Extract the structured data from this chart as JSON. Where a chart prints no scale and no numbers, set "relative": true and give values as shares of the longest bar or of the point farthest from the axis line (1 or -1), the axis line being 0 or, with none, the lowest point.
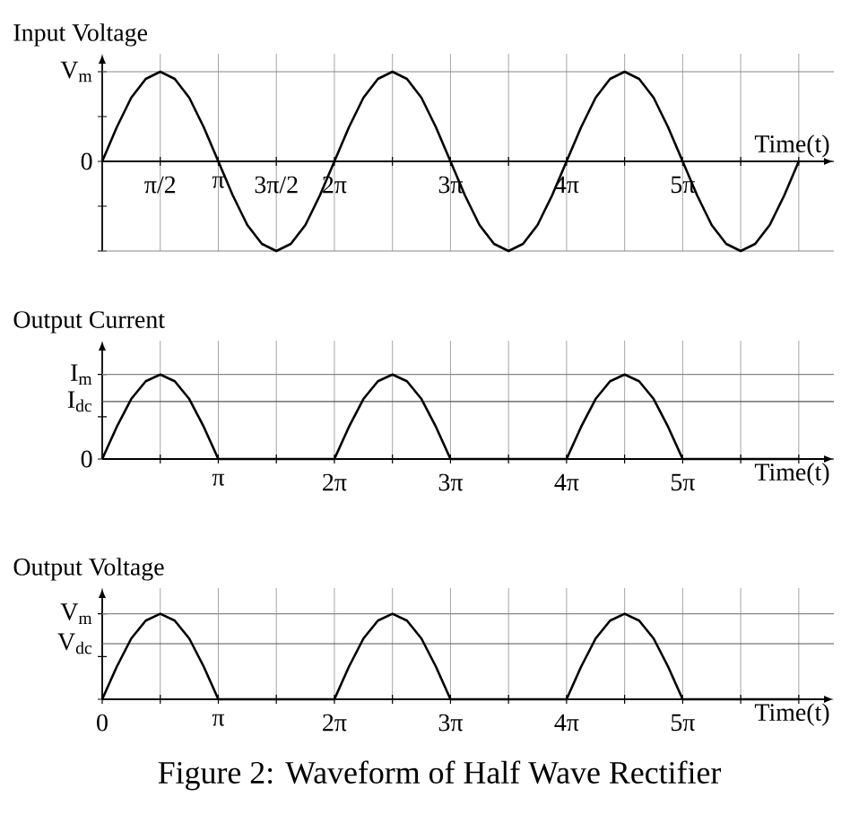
{
  "chart_data": [
    {
      "type": "line",
      "title": "Input Voltage",
      "xlabel": "Time(t)",
      "relative": true,
      "x": [
        0,
        0.393,
        0.785,
        1.178,
        1.571,
        1.963,
        2.356,
        2.749,
        3.142,
        3.534,
        3.927,
        4.32,
        4.712,
        5.105,
        5.498,
        5.89,
        6.283,
        6.676,
        7.069,
        7.461,
        7.854,
        8.247,
        8.639,
        9.032,
        9.425,
        9.817,
        10.21,
        10.603,
        10.996,
        11.388,
        11.781,
        12.174,
        12.566,
        12.959,
        13.352,
        13.744,
        14.137,
        14.53,
        14.923,
        15.315,
        15.708,
        16.101,
        16.493,
        16.886,
        17.279,
        17.671,
        18.064,
        18.457,
        18.85
      ],
      "series": [
        {
          "color": "#000000",
          "values": [
            0,
            0.38,
            0.71,
            0.92,
            1,
            0.92,
            0.71,
            0.38,
            0,
            -0.38,
            -0.71,
            -0.92,
            -1,
            -0.92,
            -0.71,
            -0.38,
            0,
            0.38,
            0.71,
            0.92,
            1,
            0.92,
            0.71,
            0.38,
            0,
            -0.38,
            -0.71,
            -0.92,
            -1,
            -0.92,
            -0.71,
            -0.38,
            0,
            0.38,
            0.71,
            0.92,
            1,
            0.92,
            0.71,
            0.38,
            0,
            -0.38,
            -0.71,
            -0.92,
            -1,
            -0.92,
            -0.71,
            -0.38,
            0
          ]
        }
      ],
      "xlim": [
        0,
        19.8
      ],
      "xticks": [
        {
          "value": 1.571,
          "label": "π/2"
        },
        {
          "value": 3.142,
          "label": "π"
        },
        {
          "value": 4.712,
          "label": "3π/2"
        },
        {
          "value": 6.283,
          "label": "2π"
        },
        {
          "value": 7.854,
          "label": null
        },
        {
          "value": 9.425,
          "label": "3π"
        },
        {
          "value": 10.996,
          "label": null
        },
        {
          "value": 12.566,
          "label": "4π"
        },
        {
          "value": 14.137,
          "label": null
        },
        {
          "value": 15.708,
          "label": "5π"
        },
        {
          "value": 17.279,
          "label": null
        },
        {
          "value": 18.85,
          "label": null
        }
      ],
      "ref_lines": [
        {
          "axis": "y",
          "value": 1,
          "label": "V$_{m}$",
          "color": "#888888"
        },
        {
          "axis": "y",
          "value": 0,
          "label": "0",
          "color": "#000000"
        },
        {
          "axis": "y",
          "value": -1,
          "color": "#888888"
        }
      ],
      "grid": "x",
      "line_style": "solid"
    },
    {
      "type": "line",
      "title": "Output Current",
      "xlabel": "Time(t)",
      "relative": true,
      "x": [
        0,
        0.393,
        0.785,
        1.178,
        1.571,
        1.963,
        2.356,
        2.749,
        3.142,
        3.534,
        3.927,
        4.32,
        4.712,
        5.105,
        5.498,
        5.89,
        6.283,
        6.676,
        7.069,
        7.461,
        7.854,
        8.247,
        8.639,
        9.032,
        9.425,
        9.817,
        10.21,
        10.603,
        10.996,
        11.388,
        11.781,
        12.174,
        12.566,
        12.959,
        13.352,
        13.744,
        14.137,
        14.53,
        14.923,
        15.315,
        15.708,
        16.101,
        16.493,
        16.886,
        17.279,
        17.671,
        18.064,
        18.457,
        18.85
      ],
      "series": [
        {
          "color": "#000000",
          "values": [
            0,
            0.38,
            0.71,
            0.92,
            1,
            0.92,
            0.71,
            0.38,
            0,
            0,
            0,
            0,
            0,
            0,
            0,
            0,
            0,
            0.38,
            0.71,
            0.92,
            1,
            0.92,
            0.71,
            0.38,
            0,
            0,
            0,
            0,
            0,
            0,
            0,
            0,
            0,
            0.38,
            0.71,
            0.92,
            1,
            0.92,
            0.71,
            0.38,
            0,
            0,
            0,
            0,
            0,
            0,
            0,
            0,
            0
          ]
        }
      ],
      "xlim": [
        0,
        19.8
      ],
      "xticks": [
        {
          "value": 1.571,
          "label": null
        },
        {
          "value": 3.142,
          "label": "π"
        },
        {
          "value": 4.712,
          "label": null
        },
        {
          "value": 6.283,
          "label": "2π"
        },
        {
          "value": 7.854,
          "label": null
        },
        {
          "value": 9.425,
          "label": "3π"
        },
        {
          "value": 10.996,
          "label": null
        },
        {
          "value": 12.566,
          "label": "4π"
        },
        {
          "value": 14.137,
          "label": null
        },
        {
          "value": 15.708,
          "label": "5π"
        },
        {
          "value": 17.279,
          "label": null
        },
        {
          "value": 18.85,
          "label": null
        }
      ],
      "ref_lines": [
        {
          "axis": "y",
          "value": 1,
          "label": "I$_{m}$",
          "color": "#888888"
        },
        {
          "axis": "y",
          "value": 0.68,
          "label": "I$_{dc}$",
          "color": "#555555"
        },
        {
          "axis": "y",
          "value": 0,
          "label": "0",
          "color": "#000000"
        }
      ],
      "grid": "x",
      "line_style": "solid"
    },
    {
      "type": "line",
      "title": "Output Voltage",
      "xlabel": "Time(t)",
      "relative": true,
      "x": [
        0,
        0.393,
        0.785,
        1.178,
        1.571,
        1.963,
        2.356,
        2.749,
        3.142,
        3.534,
        3.927,
        4.32,
        4.712,
        5.105,
        5.498,
        5.89,
        6.283,
        6.676,
        7.069,
        7.461,
        7.854,
        8.247,
        8.639,
        9.032,
        9.425,
        9.817,
        10.21,
        10.603,
        10.996,
        11.388,
        11.781,
        12.174,
        12.566,
        12.959,
        13.352,
        13.744,
        14.137,
        14.53,
        14.923,
        15.315,
        15.708,
        16.101,
        16.493,
        16.886,
        17.279,
        17.671,
        18.064,
        18.457,
        18.85
      ],
      "series": [
        {
          "color": "#000000",
          "values": [
            0,
            0.38,
            0.71,
            0.92,
            1,
            0.92,
            0.71,
            0.38,
            0,
            0,
            0,
            0,
            0,
            0,
            0,
            0,
            0,
            0.38,
            0.71,
            0.92,
            1,
            0.92,
            0.71,
            0.38,
            0,
            0,
            0,
            0,
            0,
            0,
            0,
            0,
            0,
            0.38,
            0.71,
            0.92,
            1,
            0.92,
            0.71,
            0.38,
            0,
            0,
            0,
            0,
            0,
            0,
            0,
            0,
            0
          ]
        }
      ],
      "xlim": [
        0,
        19.8
      ],
      "xticks": [
        0,
        {
          "value": 1.571,
          "label": null
        },
        {
          "value": 3.142,
          "label": "π"
        },
        {
          "value": 4.712,
          "label": null
        },
        {
          "value": 6.283,
          "label": "2π"
        },
        {
          "value": 7.854,
          "label": null
        },
        {
          "value": 9.425,
          "label": "3π"
        },
        {
          "value": 10.996,
          "label": null
        },
        {
          "value": 12.566,
          "label": "4π"
        },
        {
          "value": 14.137,
          "label": null
        },
        {
          "value": 15.708,
          "label": "5π"
        },
        {
          "value": 17.279,
          "label": null
        },
        {
          "value": 18.85,
          "label": null
        }
      ],
      "ref_lines": [
        {
          "axis": "y",
          "value": 1,
          "label": "V$_{m}$",
          "color": "#888888"
        },
        {
          "axis": "y",
          "value": 0.65,
          "label": "V$_{dc}$",
          "color": "#555555"
        }
      ],
      "grid": "x",
      "line_style": "solid",
      "annotations": [
        "Figure 2: Waveform of Half Wave Rectifier"
      ]
    }
  ]
}
